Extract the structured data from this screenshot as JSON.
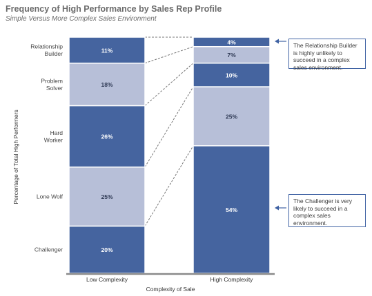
{
  "title": "Frequency of High Performance by Sales Rep Profile",
  "subtitle": "Simple Versus More Complex Sales Environment",
  "colors": {
    "dark": "#45649f",
    "light": "#b7bfd8",
    "axis": "#8a8a8a",
    "connector": "#777777",
    "note_border": "#3f62a3"
  },
  "chart_data": {
    "type": "bar",
    "stacked": true,
    "xlabel": "Complexity of Sale",
    "ylabel": "Percentage of Total High Performers",
    "ylim": [
      0,
      100
    ],
    "categories": [
      "Low Complexity",
      "High Complexity"
    ],
    "series": [
      {
        "name": "Challenger",
        "values": [
          20,
          54
        ],
        "labels": [
          "20%",
          "54%"
        ],
        "color": "dark"
      },
      {
        "name": "Lone Wolf",
        "values": [
          25,
          25
        ],
        "labels": [
          "25%",
          "25%"
        ],
        "color": "light"
      },
      {
        "name": "Hard\nWorker",
        "values": [
          26,
          10
        ],
        "labels": [
          "26%",
          "10%"
        ],
        "color": "dark"
      },
      {
        "name": "Problem\nSolver",
        "values": [
          18,
          7
        ],
        "labels": [
          "18%",
          "7%"
        ],
        "color": "light"
      },
      {
        "name": "Relationship\nBuilder",
        "values": [
          11,
          4
        ],
        "labels": [
          "11%",
          "4%"
        ],
        "color": "dark"
      }
    ],
    "annotations": [
      {
        "text": "The Relationship Builder is highly unlikely to succeed in a complex sales environment.",
        "points_to": "Relationship Builder, High Complexity"
      },
      {
        "text": "The Challenger is very likely to succeed in a complex sales environment.",
        "points_to": "Challenger, High Complexity"
      }
    ]
  }
}
